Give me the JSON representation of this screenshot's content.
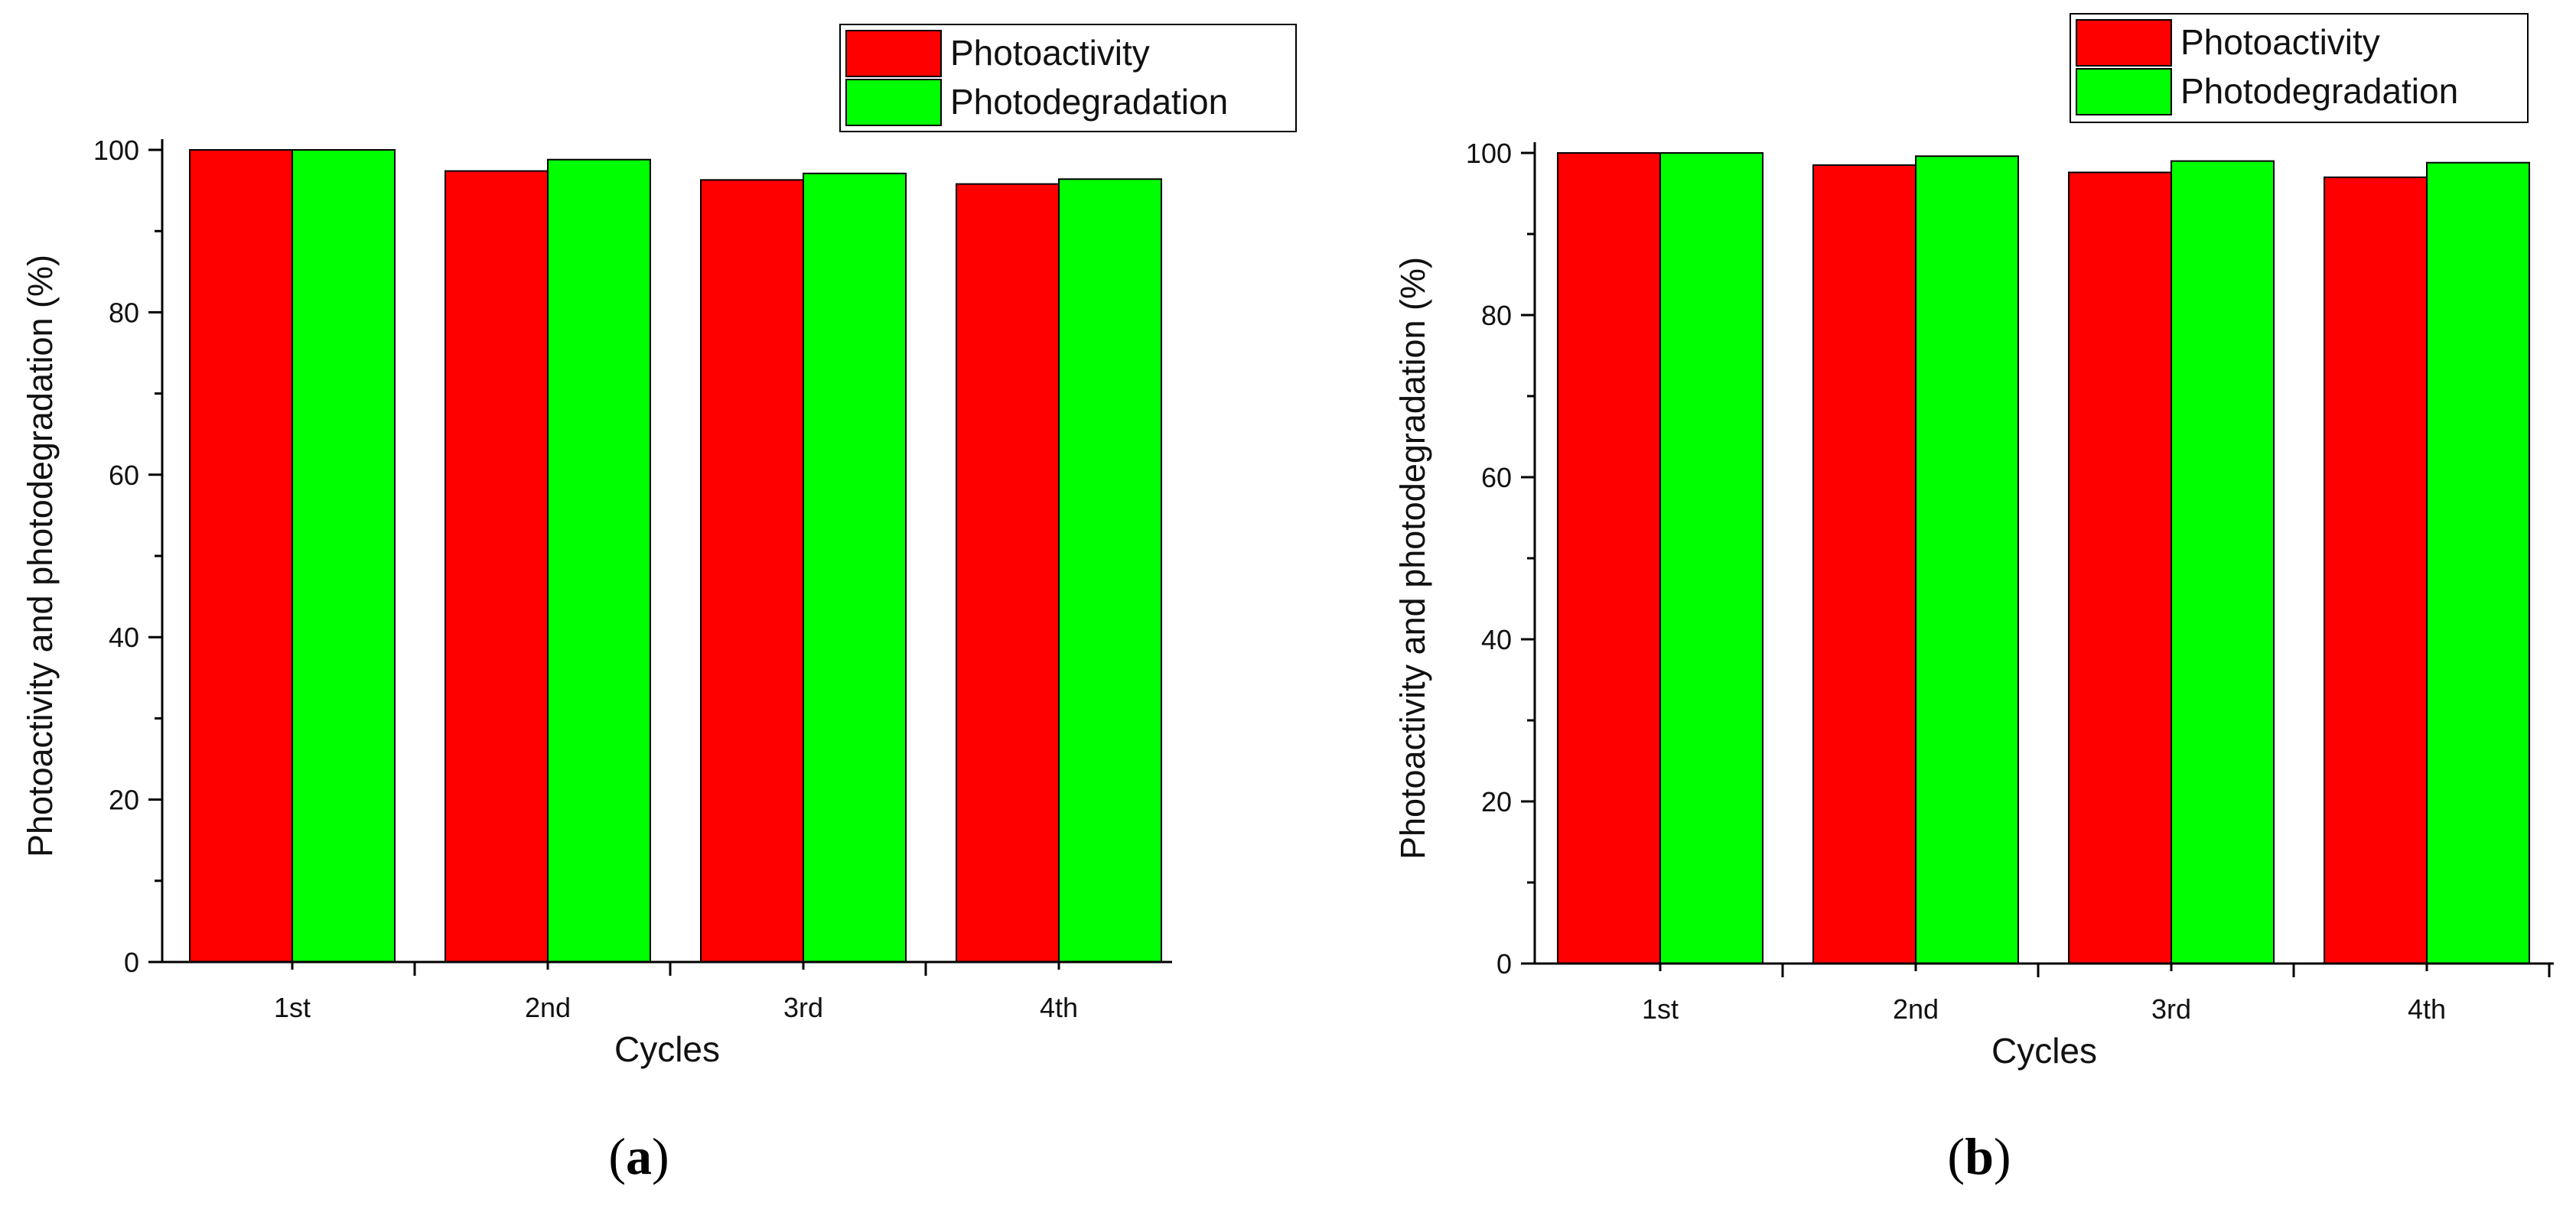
{
  "chart_data": [
    {
      "type": "bar",
      "panel_label": "a",
      "xlabel": "Cycles",
      "ylabel": "Photoactivity and photodegradation (%)",
      "ylim": [
        0,
        100
      ],
      "yticks": [
        0,
        20,
        40,
        60,
        80,
        100
      ],
      "categories": [
        "1st",
        "2nd",
        "3rd",
        "4th"
      ],
      "legend_position": "top-right",
      "series": [
        {
          "name": "Photoactivity",
          "color": "#ff0000",
          "values": [
            100,
            97.4,
            96.3,
            95.8
          ]
        },
        {
          "name": "Photodegradation",
          "color": "#00ff00",
          "values": [
            100,
            98.8,
            97.1,
            96.4
          ]
        }
      ]
    },
    {
      "type": "bar",
      "panel_label": "b",
      "xlabel": "Cycles",
      "ylabel": "Photoactivity and photodegradation (%)",
      "ylim": [
        0,
        100
      ],
      "yticks": [
        0,
        20,
        40,
        60,
        80,
        100
      ],
      "categories": [
        "1st",
        "2nd",
        "3rd",
        "4th"
      ],
      "legend_position": "top-right",
      "series": [
        {
          "name": "Photoactivity",
          "color": "#ff0000",
          "values": [
            100,
            98.5,
            97.6,
            97.0
          ]
        },
        {
          "name": "Photodegradation",
          "color": "#00ff00",
          "values": [
            100,
            99.6,
            99.0,
            98.8
          ]
        }
      ]
    }
  ]
}
